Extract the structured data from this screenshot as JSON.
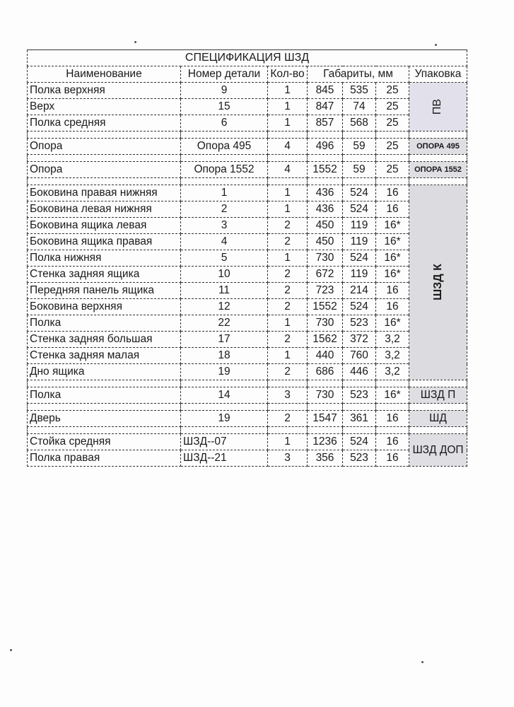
{
  "title": "СПЕЦИФИКАЦИЯ ШЗД",
  "headers": {
    "name": "Наименование",
    "part": "Номер детали",
    "qty": "Кол-во",
    "dims": "Габариты, мм",
    "pack": "Упаковка"
  },
  "groups": [
    {
      "pack": "ПВ",
      "pack_style": "rotated",
      "rows": [
        {
          "name": "Полка верхняя",
          "part": "9",
          "qty": "1",
          "d1": "845",
          "d2": "535",
          "d3": "25"
        },
        {
          "name": "Верх",
          "part": "15",
          "qty": "1",
          "d1": "847",
          "d2": "74",
          "d3": "25"
        },
        {
          "name": "Полка средняя",
          "part": "6",
          "qty": "1",
          "d1": "857",
          "d2": "568",
          "d3": "25"
        }
      ]
    },
    {
      "pack": "ОПОРА 495",
      "pack_style": "small",
      "rows": [
        {
          "name": "Опора",
          "part": "Опора 495",
          "qty": "4",
          "d1": "496",
          "d2": "59",
          "d3": "25"
        }
      ]
    },
    {
      "pack": "ОПОРА 1552",
      "pack_style": "small",
      "rows": [
        {
          "name": "Опора",
          "part": "Опора 1552",
          "qty": "4",
          "d1": "1552",
          "d2": "59",
          "d3": "25"
        }
      ]
    },
    {
      "pack": "ШЗД К",
      "pack_style": "rotated-bold",
      "rows": [
        {
          "name": "Боковина правая нижняя",
          "part": "1",
          "qty": "1",
          "d1": "436",
          "d2": "524",
          "d3": "16"
        },
        {
          "name": "Боковина левая нижняя",
          "part": "2",
          "qty": "1",
          "d1": "436",
          "d2": "524",
          "d3": "16"
        },
        {
          "name": "Боковина ящика левая",
          "part": "3",
          "qty": "2",
          "d1": "450",
          "d2": "119",
          "d3": "16*"
        },
        {
          "name": "Боковина ящика правая",
          "part": "4",
          "qty": "2",
          "d1": "450",
          "d2": "119",
          "d3": "16*"
        },
        {
          "name": "Полка нижняя",
          "part": "5",
          "qty": "1",
          "d1": "730",
          "d2": "524",
          "d3": "16*"
        },
        {
          "name": "Стенка задняя ящика",
          "part": "10",
          "qty": "2",
          "d1": "672",
          "d2": "119",
          "d3": "16*"
        },
        {
          "name": "Передняя панель ящика",
          "part": "11",
          "qty": "2",
          "d1": "723",
          "d2": "214",
          "d3": "16"
        },
        {
          "name": "Боковина верхняя",
          "part": "12",
          "qty": "2",
          "d1": "1552",
          "d2": "524",
          "d3": "16"
        },
        {
          "name": "Полка",
          "part": "22",
          "qty": "1",
          "d1": "730",
          "d2": "523",
          "d3": "16*"
        },
        {
          "name": "Стенка задняя большая",
          "part": "17",
          "qty": "2",
          "d1": "1562",
          "d2": "372",
          "d3": "3,2"
        },
        {
          "name": "Стенка задняя малая",
          "part": "18",
          "qty": "1",
          "d1": "440",
          "d2": "760",
          "d3": "3,2"
        },
        {
          "name": "Дно ящика",
          "part": "19",
          "qty": "2",
          "d1": "686",
          "d2": "446",
          "d3": "3,2"
        }
      ]
    },
    {
      "pack": "ШЗД П",
      "pack_style": "normal",
      "rows": [
        {
          "name": "Полка",
          "part": "14",
          "qty": "3",
          "d1": "730",
          "d2": "523",
          "d3": "16*"
        }
      ]
    },
    {
      "pack": "ШД",
      "pack_style": "normal",
      "rows": [
        {
          "name": "Дверь",
          "part": "19",
          "qty": "2",
          "d1": "1547",
          "d2": "361",
          "d3": "16"
        }
      ]
    },
    {
      "pack": "ШЗД ДОП",
      "pack_style": "normal",
      "rows": [
        {
          "name": "Стойка средняя",
          "part": "ШЗД--07",
          "qty": "1",
          "d1": "1236",
          "d2": "524",
          "d3": "16",
          "part_align": "left"
        },
        {
          "name": "Полка правая",
          "part": "ШЗД--21",
          "qty": "3",
          "d1": "356",
          "d2": "523",
          "d3": "16",
          "part_align": "left"
        }
      ]
    }
  ]
}
